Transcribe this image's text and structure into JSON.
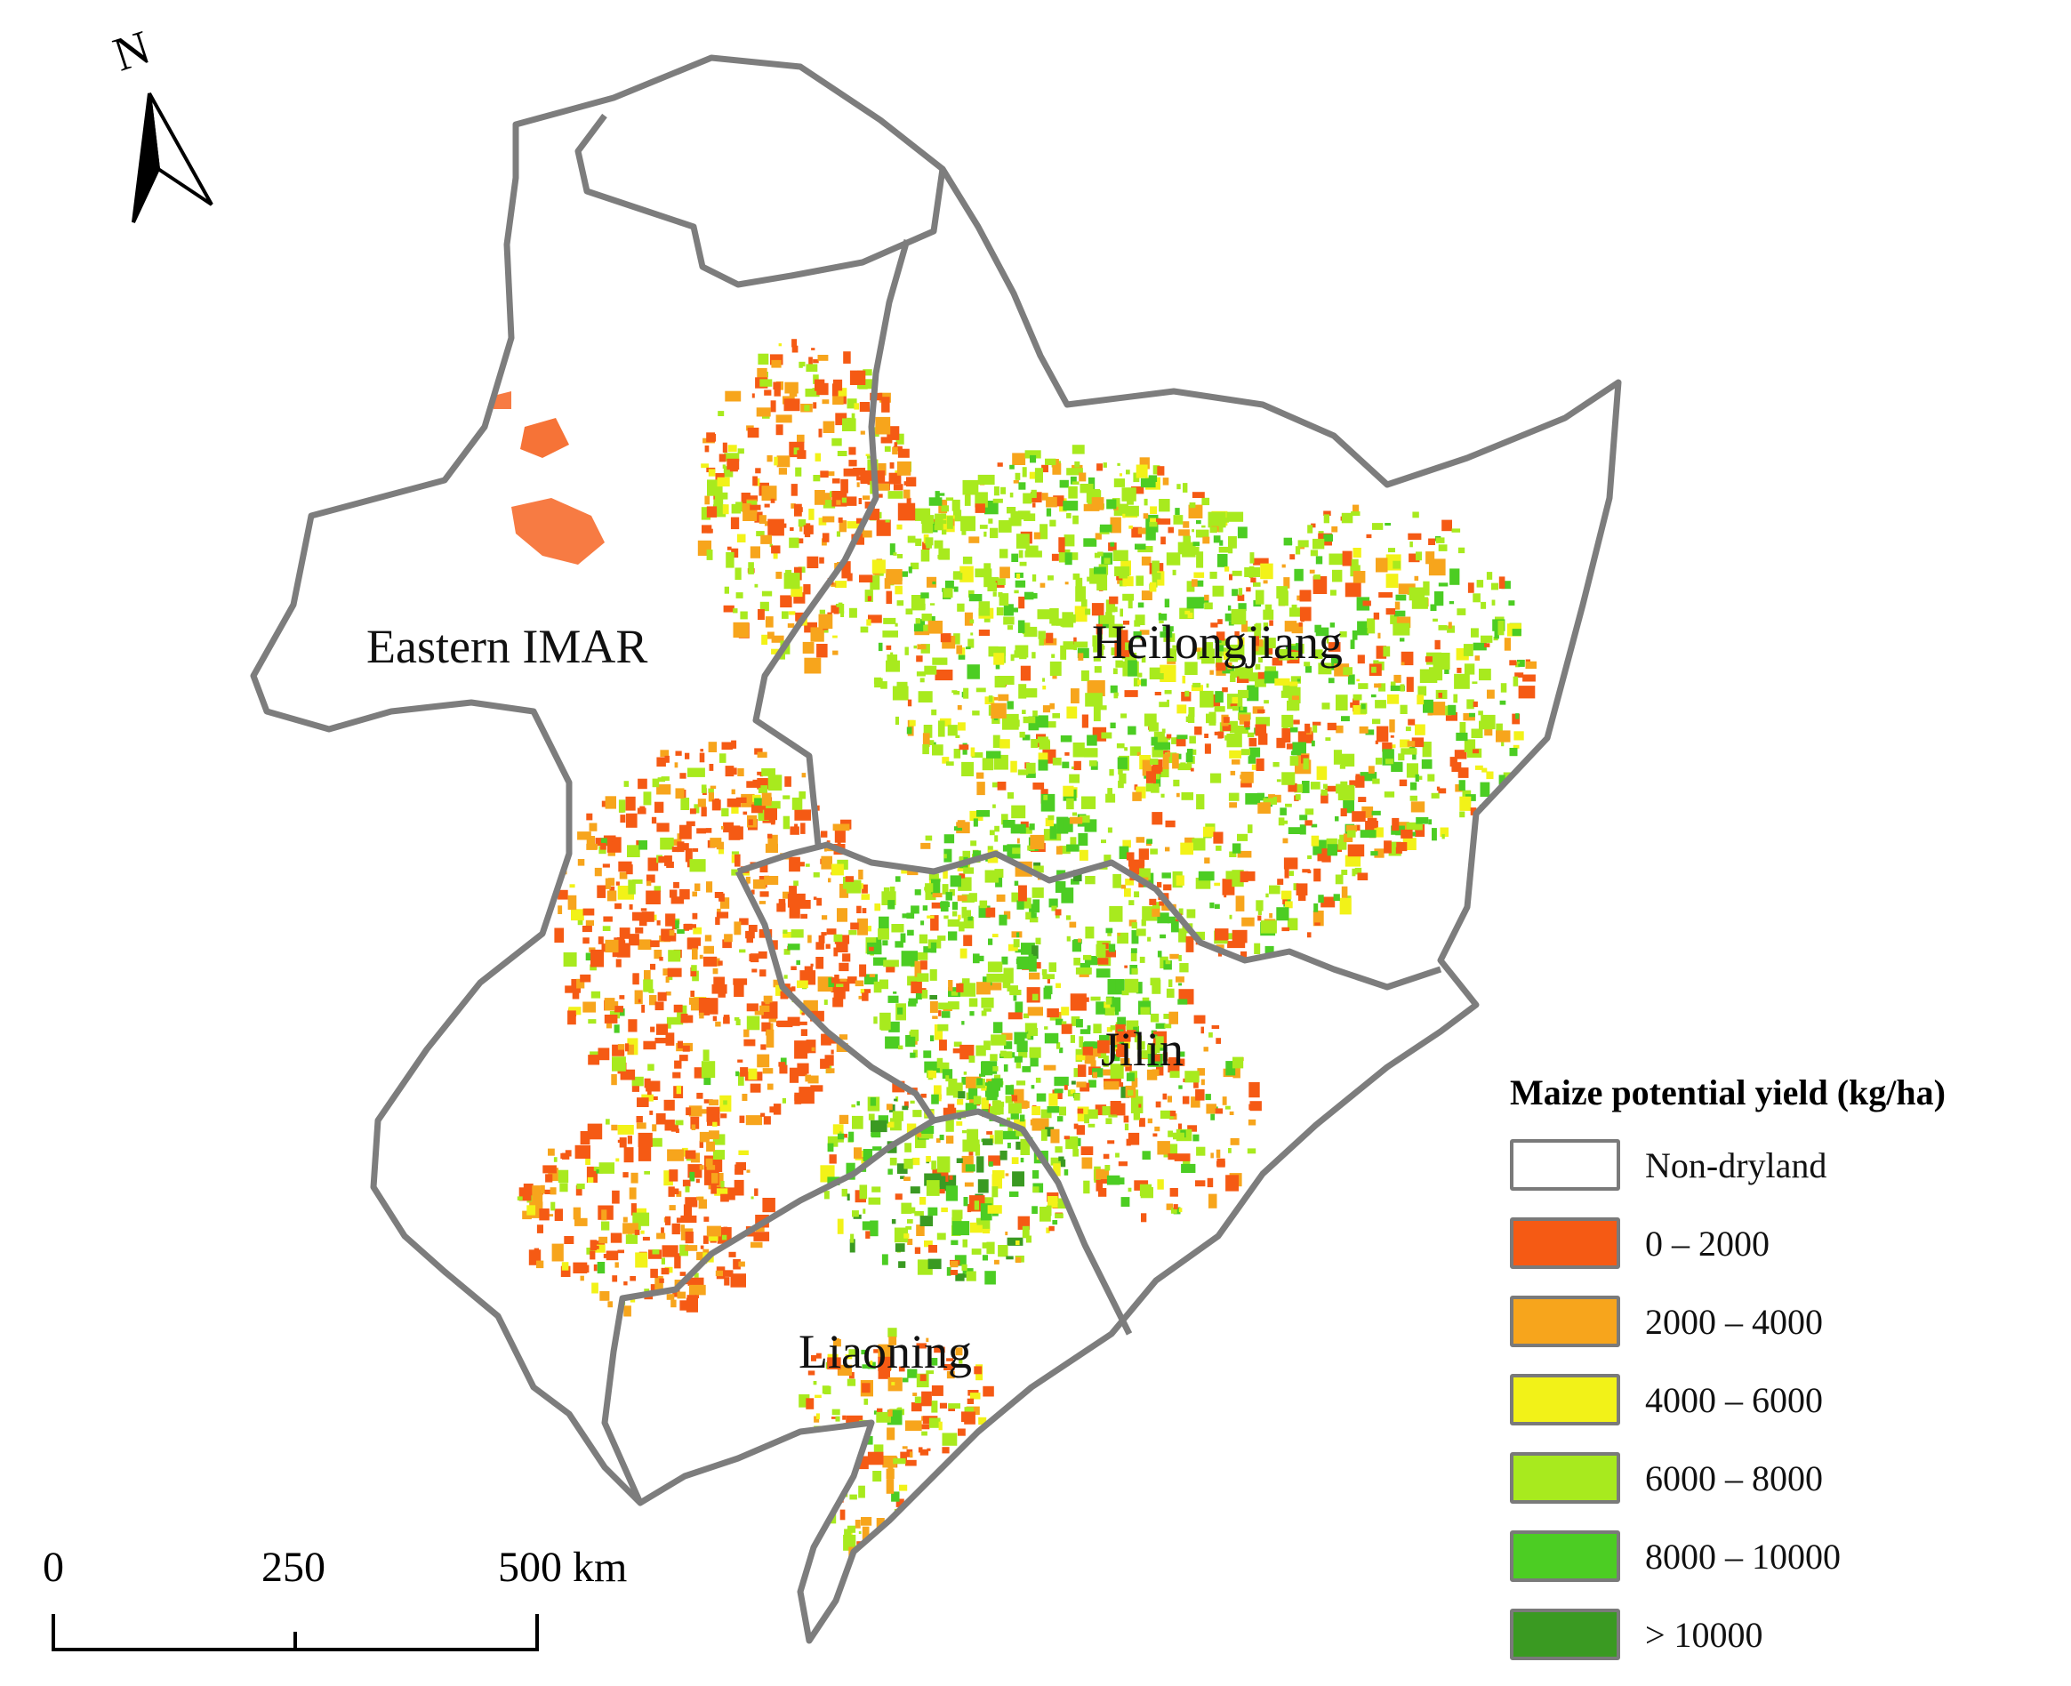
{
  "map": {
    "regions": [
      {
        "key": "imar",
        "label": "Eastern IMAR"
      },
      {
        "key": "heilongjiang",
        "label": "Heilongjiang"
      },
      {
        "key": "jilin",
        "label": "Jilin"
      },
      {
        "key": "liaoning",
        "label": "Liaoning"
      }
    ],
    "north_arrow": {
      "letter": "N"
    },
    "scale_bar": {
      "ticks": [
        "0",
        "250",
        "500 km"
      ]
    }
  },
  "legend": {
    "title": "Maize potential yield (kg/ha)",
    "items": [
      {
        "label": "Non-dryland",
        "color": "#ffffff"
      },
      {
        "label": "0 – 2000",
        "color": "#f55a14"
      },
      {
        "label": "2000 – 4000",
        "color": "#f7a51c"
      },
      {
        "label": "4000 – 6000",
        "color": "#f2f218"
      },
      {
        "label": "6000 – 8000",
        "color": "#a8ea1e"
      },
      {
        "label": "8000 – 10000",
        "color": "#4ccd23"
      },
      {
        "label": "> 10000",
        "color": "#3a9a22"
      }
    ]
  },
  "colors": {
    "boundary": "#7d7d7d",
    "boundary_shadow": "#bdbdbd"
  }
}
